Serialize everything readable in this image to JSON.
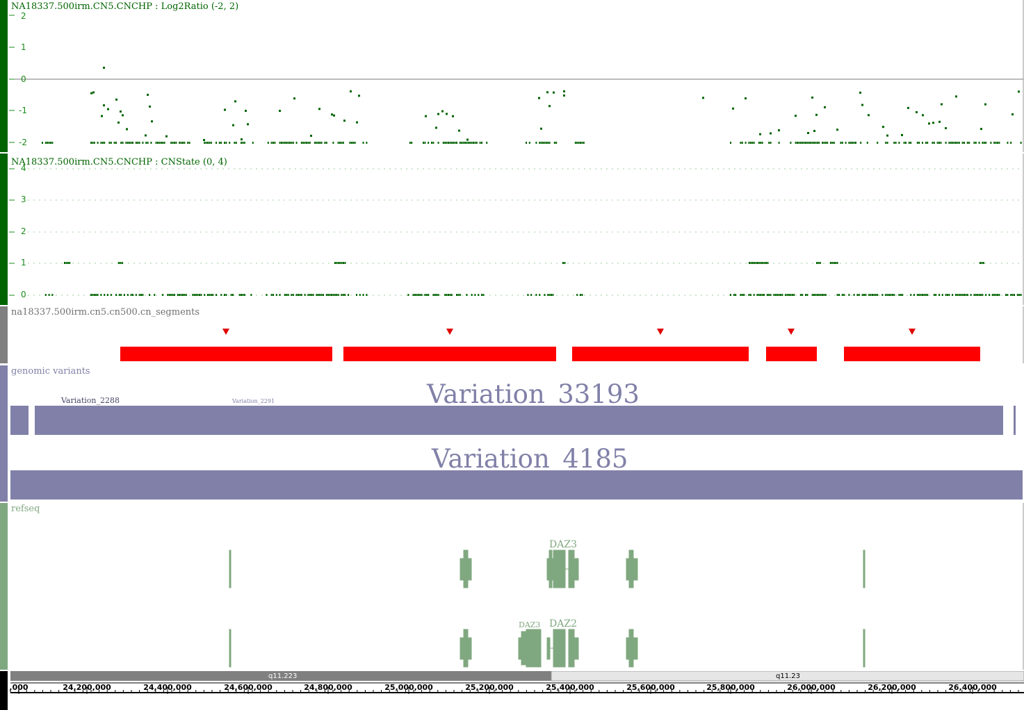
{
  "tracks": {
    "log2": {
      "title": "NA18337.500irm.CN5.CNCHP : Log2Ratio (-2, 2)",
      "handle_color": "#006400",
      "title_color": "#006400",
      "ticks": [
        "2",
        "1",
        "0",
        "-1",
        "-2"
      ]
    },
    "cnstate": {
      "title": "NA18337.500irm.CN5.CNCHP : CNState (0, 4)",
      "handle_color": "#006400",
      "title_color": "#006400",
      "ticks": [
        "4",
        "3",
        "2",
        "1",
        "0"
      ]
    },
    "segments": {
      "title": "na18337.500irm.cn5.cn500.cn_segments",
      "handle_color": "#808080",
      "bar_color": "#ff0000",
      "count": 5
    },
    "variants": {
      "title": "genomic variants",
      "handle_color": "#8080a8",
      "bar_color": "#8080a8",
      "labels": {
        "small_a": "Variation_2288",
        "small_b": "Variation_2291",
        "big_a": "Variation_33193",
        "big_b": "Variation_4185"
      }
    },
    "refseq": {
      "title": "refseq",
      "handle_color": "#80a880",
      "gene_color": "#80a880",
      "labels": {
        "daz_top": "DAZ3",
        "daz3": "DAZ3",
        "daz2": "DAZ2"
      }
    },
    "ruler": {
      "handle_color": "#000000",
      "bands": [
        "q11.223",
        "q11.23"
      ],
      "ticks": [
        ",000",
        "24,200,000",
        "24,400,000",
        "24,600,000",
        "24,800,000",
        "25,000,000",
        "25,200,000",
        "25,400,000",
        "25,600,000",
        "25,800,000",
        "26,000,000",
        "26,200,000",
        "26,400,000"
      ]
    }
  }
}
